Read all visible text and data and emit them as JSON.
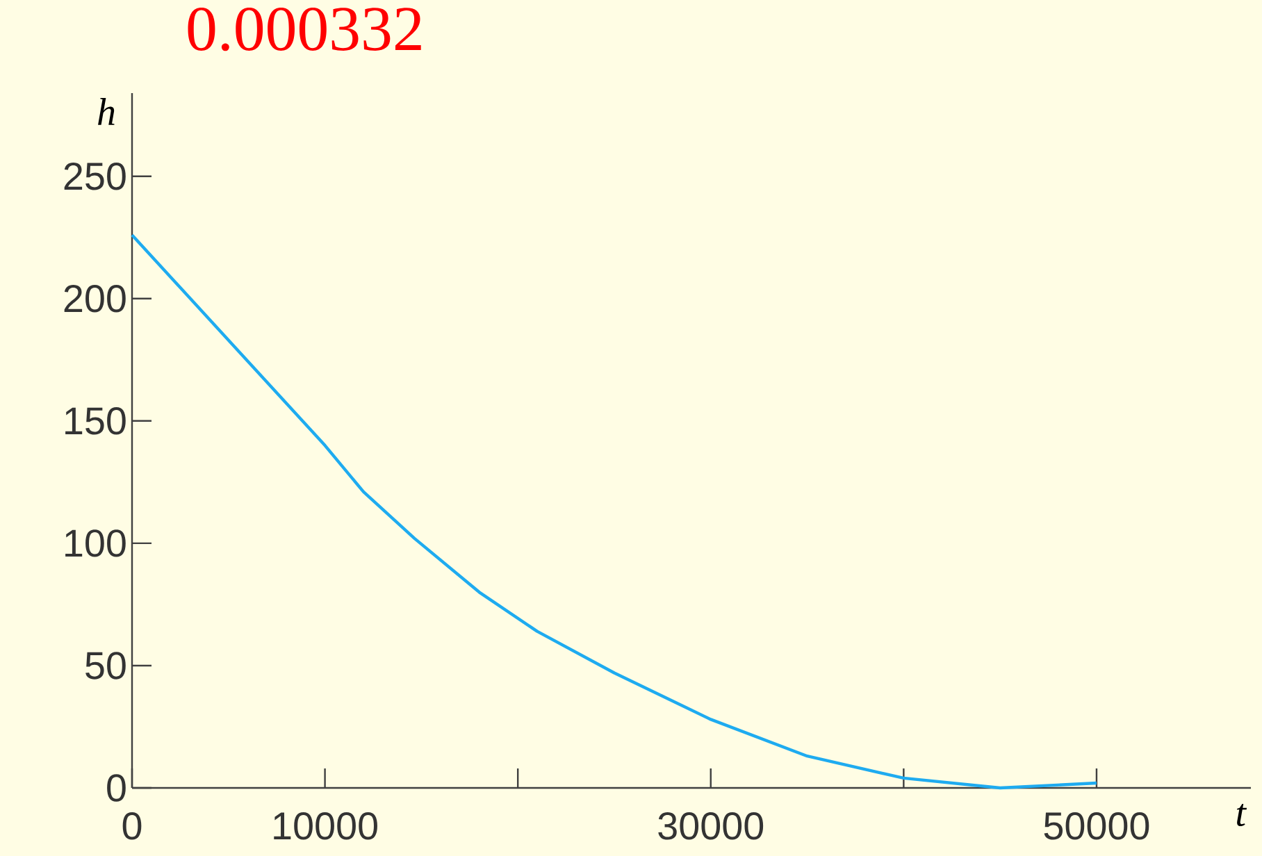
{
  "chart_data": {
    "type": "line",
    "xlabel": "t",
    "ylabel": "h",
    "annotations": [
      "0.000332"
    ],
    "x": [
      0,
      5000,
      10000,
      12000,
      14640,
      18000,
      21000,
      25000,
      30000,
      35000,
      40000,
      45000,
      50000
    ],
    "series": [
      {
        "color": "#1eabf0",
        "values": [
          226,
          183,
          140,
          121,
          102,
          80,
          64,
          47,
          28,
          13,
          4,
          0,
          2
        ]
      }
    ],
    "xlim": [
      0,
      58000
    ],
    "ylim": [
      0,
      284
    ],
    "xticks": [
      0,
      10000,
      {
        "value": 20000,
        "label": null
      },
      30000,
      {
        "value": 40000,
        "label": null
      },
      50000
    ],
    "yticks": [
      0,
      50,
      100,
      150,
      200,
      250
    ],
    "grid": false,
    "marker": "none",
    "line_style": "solid"
  }
}
